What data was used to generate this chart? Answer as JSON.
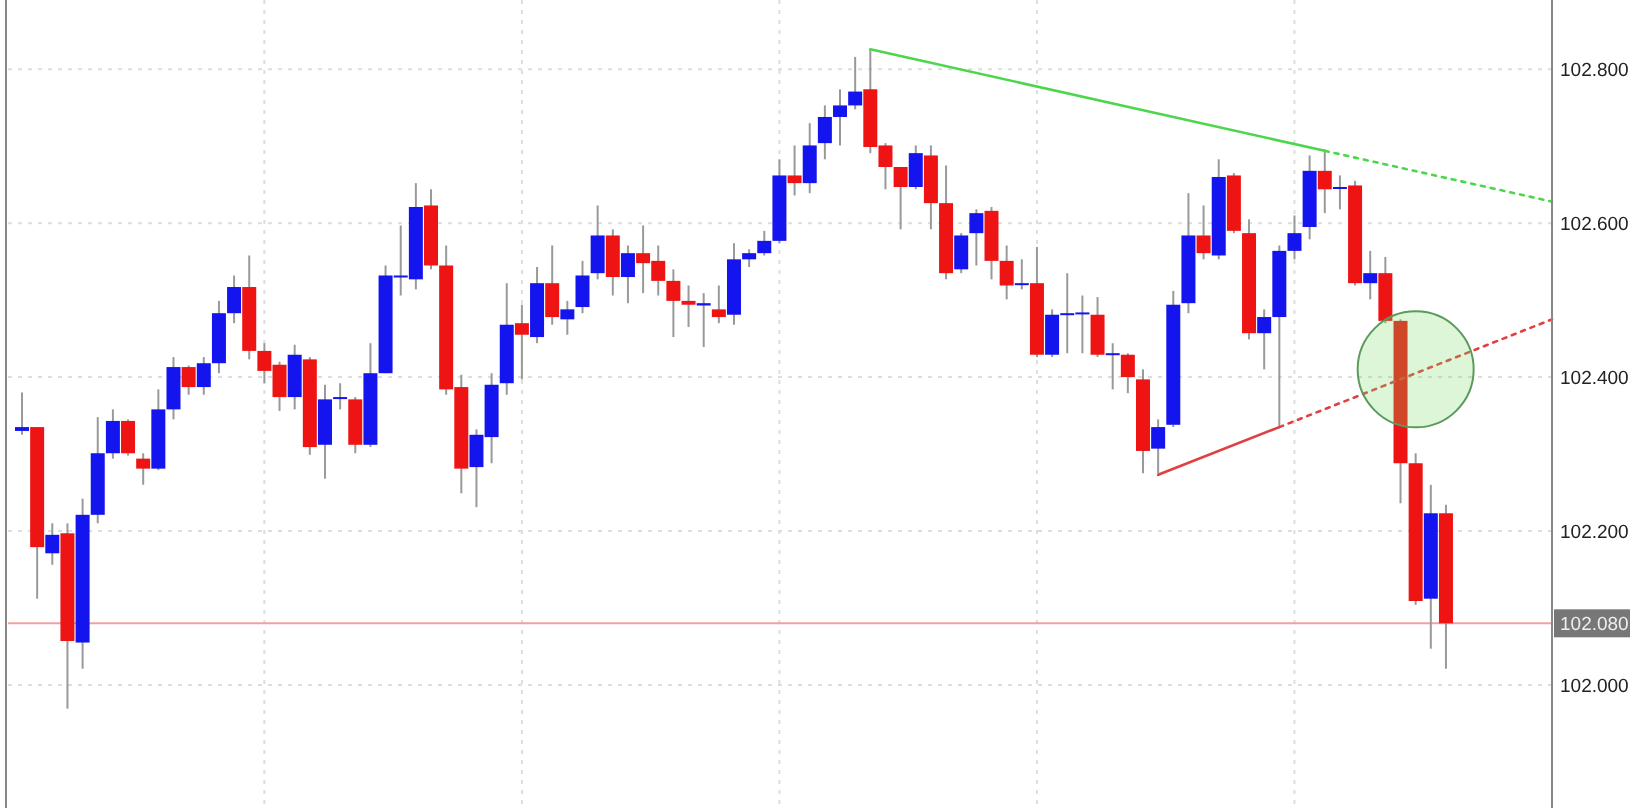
{
  "chart_data": {
    "type": "candlestick",
    "categories": [
      null,
      null,
      null,
      null,
      null,
      null,
      null,
      null,
      null,
      null,
      null,
      null,
      null,
      null,
      null,
      null,
      null,
      null,
      null,
      null,
      null,
      null,
      null,
      null,
      null,
      null,
      null,
      null,
      null,
      null,
      null,
      null,
      null,
      null,
      null,
      null,
      null,
      null,
      null,
      null,
      null,
      null,
      null,
      null,
      null,
      null,
      null,
      null,
      null,
      null,
      null,
      null,
      null,
      null,
      null,
      null,
      null,
      null,
      null,
      null,
      null,
      null,
      null,
      null,
      null,
      null,
      null,
      null,
      null,
      null,
      null,
      null,
      null,
      null,
      null,
      null,
      null,
      null,
      null,
      null,
      null,
      null,
      null,
      null,
      null,
      null,
      null,
      null,
      null,
      null,
      null,
      null,
      null,
      null,
      null,
      null,
      null,
      null,
      null,
      null,
      null,
      null
    ],
    "ohlc": [
      [
        102.33,
        102.38,
        102.325,
        102.335
      ],
      [
        102.335,
        102.335,
        102.112,
        102.179
      ],
      [
        102.171,
        102.21,
        102.156,
        102.195
      ],
      [
        102.197,
        102.21,
        101.969,
        102.057
      ],
      [
        102.055,
        102.242,
        102.021,
        102.221
      ],
      [
        102.221,
        102.348,
        102.21,
        102.301
      ],
      [
        102.301,
        102.358,
        102.294,
        102.343
      ],
      [
        102.343,
        102.345,
        102.298,
        102.301
      ],
      [
        102.294,
        102.301,
        102.26,
        102.281
      ],
      [
        102.281,
        102.384,
        102.279,
        102.358
      ],
      [
        102.358,
        102.426,
        102.345,
        102.413
      ],
      [
        102.413,
        102.415,
        102.377,
        102.387
      ],
      [
        102.387,
        102.426,
        102.377,
        102.418
      ],
      [
        102.418,
        102.499,
        102.405,
        102.483
      ],
      [
        102.483,
        102.532,
        102.47,
        102.517
      ],
      [
        102.517,
        102.558,
        102.423,
        102.434
      ],
      [
        102.434,
        102.444,
        102.392,
        102.408
      ],
      [
        102.416,
        102.42,
        102.356,
        102.374
      ],
      [
        102.374,
        102.442,
        102.358,
        102.429
      ],
      [
        102.423,
        102.426,
        102.299,
        102.309
      ],
      [
        102.312,
        102.39,
        102.268,
        102.371
      ],
      [
        102.372,
        102.392,
        102.358,
        102.374
      ],
      [
        102.371,
        102.374,
        102.301,
        102.312
      ],
      [
        102.312,
        102.444,
        102.309,
        102.405
      ],
      [
        102.405,
        102.545,
        102.405,
        102.532
      ],
      [
        102.53,
        102.597,
        102.506,
        102.532
      ],
      [
        102.527,
        102.652,
        102.514,
        102.621
      ],
      [
        102.623,
        102.644,
        102.54,
        102.545
      ],
      [
        102.545,
        102.571,
        102.377,
        102.384
      ],
      [
        102.387,
        102.403,
        102.249,
        102.281
      ],
      [
        102.283,
        102.332,
        102.231,
        102.325
      ],
      [
        102.322,
        102.405,
        102.288,
        102.39
      ],
      [
        102.392,
        102.522,
        102.377,
        102.468
      ],
      [
        102.47,
        102.494,
        102.397,
        102.455
      ],
      [
        102.452,
        102.543,
        102.444,
        102.522
      ],
      [
        102.522,
        102.571,
        102.468,
        102.478
      ],
      [
        102.475,
        102.499,
        102.455,
        102.488
      ],
      [
        102.491,
        102.551,
        102.483,
        102.532
      ],
      [
        102.535,
        102.623,
        102.527,
        102.584
      ],
      [
        102.584,
        102.592,
        102.506,
        102.53
      ],
      [
        102.53,
        102.571,
        102.496,
        102.561
      ],
      [
        102.561,
        102.597,
        102.509,
        102.548
      ],
      [
        102.551,
        102.571,
        102.506,
        102.525
      ],
      [
        102.525,
        102.54,
        102.452,
        102.499
      ],
      [
        102.499,
        102.519,
        102.465,
        102.494
      ],
      [
        102.493,
        102.509,
        102.439,
        102.496
      ],
      [
        102.488,
        102.519,
        102.47,
        102.478
      ],
      [
        102.481,
        102.574,
        102.468,
        102.553
      ],
      [
        102.553,
        102.566,
        102.543,
        102.561
      ],
      [
        102.561,
        102.59,
        102.558,
        102.577
      ],
      [
        102.577,
        102.683,
        102.574,
        102.662
      ],
      [
        102.662,
        102.701,
        102.636,
        102.652
      ],
      [
        102.652,
        102.73,
        102.639,
        102.701
      ],
      [
        102.704,
        102.753,
        102.683,
        102.738
      ],
      [
        102.738,
        102.774,
        102.701,
        102.753
      ],
      [
        102.753,
        102.816,
        102.748,
        102.771
      ],
      [
        102.774,
        102.826,
        102.691,
        102.699
      ],
      [
        102.701,
        102.704,
        102.644,
        102.673
      ],
      [
        102.673,
        102.673,
        102.592,
        102.647
      ],
      [
        102.647,
        102.701,
        102.644,
        102.691
      ],
      [
        102.688,
        102.701,
        102.592,
        102.626
      ],
      [
        102.626,
        102.675,
        102.527,
        102.535
      ],
      [
        102.54,
        102.587,
        102.535,
        102.584
      ],
      [
        102.587,
        102.618,
        102.545,
        102.613
      ],
      [
        102.616,
        102.621,
        102.527,
        102.551
      ],
      [
        102.551,
        102.571,
        102.501,
        102.519
      ],
      [
        102.52,
        102.553,
        102.514,
        102.522
      ],
      [
        102.522,
        102.569,
        102.426,
        102.429
      ],
      [
        102.429,
        102.488,
        102.426,
        102.481
      ],
      [
        102.481,
        102.535,
        102.431,
        102.483
      ],
      [
        102.483,
        102.506,
        102.431,
        102.484
      ],
      [
        102.481,
        102.504,
        102.426,
        102.429
      ],
      [
        102.429,
        102.444,
        102.384,
        102.431
      ],
      [
        102.429,
        102.431,
        102.379,
        102.4
      ],
      [
        102.397,
        102.41,
        102.275,
        102.304
      ],
      [
        102.307,
        102.345,
        102.275,
        102.335
      ],
      [
        102.338,
        102.512,
        102.335,
        102.494
      ],
      [
        102.496,
        102.639,
        102.483,
        102.584
      ],
      [
        102.584,
        102.623,
        102.553,
        102.561
      ],
      [
        102.558,
        102.683,
        102.553,
        102.66
      ],
      [
        102.662,
        102.665,
        102.587,
        102.59
      ],
      [
        102.587,
        102.605,
        102.449,
        102.457
      ],
      [
        102.457,
        102.488,
        102.41,
        102.478
      ],
      [
        102.478,
        102.571,
        102.335,
        102.564
      ],
      [
        102.564,
        102.61,
        102.553,
        102.587
      ],
      [
        102.595,
        102.688,
        102.579,
        102.668
      ],
      [
        102.668,
        102.694,
        102.613,
        102.644
      ],
      [
        102.645,
        102.662,
        102.618,
        102.647
      ],
      [
        102.649,
        102.655,
        102.519,
        102.522
      ],
      [
        102.522,
        102.564,
        102.501,
        102.535
      ],
      [
        102.535,
        102.556,
        102.47,
        102.473
      ],
      [
        102.473,
        102.475,
        102.236,
        102.288
      ],
      [
        102.288,
        102.301,
        102.104,
        102.109
      ],
      [
        102.112,
        102.26,
        102.047,
        102.223
      ],
      [
        102.223,
        102.234,
        102.021,
        102.08
      ],
      null,
      null,
      null,
      null,
      null,
      null,
      null
    ],
    "series": [
      {
        "type": "line",
        "color": "#4cd64c",
        "line_style": "solid",
        "values": [
          null,
          null,
          null,
          null,
          null,
          null,
          null,
          null,
          null,
          null,
          null,
          null,
          null,
          null,
          null,
          null,
          null,
          null,
          null,
          null,
          null,
          null,
          null,
          null,
          null,
          null,
          null,
          null,
          null,
          null,
          null,
          null,
          null,
          null,
          null,
          null,
          null,
          null,
          null,
          null,
          null,
          null,
          null,
          null,
          null,
          null,
          null,
          null,
          null,
          null,
          null,
          null,
          null,
          null,
          null,
          null,
          102.826,
          null,
          null,
          null,
          null,
          null,
          null,
          null,
          null,
          null,
          null,
          null,
          null,
          null,
          null,
          null,
          null,
          null,
          null,
          null,
          null,
          null,
          null,
          null,
          null,
          null,
          null,
          null,
          null,
          null,
          102.694,
          null,
          null,
          null,
          null,
          null,
          null,
          null,
          null,
          null,
          null,
          null,
          null,
          null,
          null,
          null
        ]
      },
      {
        "type": "line",
        "color": "#4cd64c",
        "line_style": "dotted",
        "values": [
          null,
          null,
          null,
          null,
          null,
          null,
          null,
          null,
          null,
          null,
          null,
          null,
          null,
          null,
          null,
          null,
          null,
          null,
          null,
          null,
          null,
          null,
          null,
          null,
          null,
          null,
          null,
          null,
          null,
          null,
          null,
          null,
          null,
          null,
          null,
          null,
          null,
          null,
          null,
          null,
          null,
          null,
          null,
          null,
          null,
          null,
          null,
          null,
          null,
          null,
          null,
          null,
          null,
          null,
          null,
          null,
          null,
          null,
          null,
          null,
          null,
          null,
          null,
          null,
          null,
          null,
          null,
          null,
          null,
          null,
          null,
          null,
          null,
          null,
          null,
          null,
          null,
          null,
          null,
          null,
          null,
          null,
          null,
          null,
          null,
          null,
          102.694,
          null,
          null,
          null,
          null,
          null,
          null,
          null,
          null,
          null,
          null,
          null,
          null,
          null,
          null,
          102.628
        ]
      },
      {
        "type": "line",
        "color": "#e04040",
        "line_style": "solid",
        "values": [
          null,
          null,
          null,
          null,
          null,
          null,
          null,
          null,
          null,
          null,
          null,
          null,
          null,
          null,
          null,
          null,
          null,
          null,
          null,
          null,
          null,
          null,
          null,
          null,
          null,
          null,
          null,
          null,
          null,
          null,
          null,
          null,
          null,
          null,
          null,
          null,
          null,
          null,
          null,
          null,
          null,
          null,
          null,
          null,
          null,
          null,
          null,
          null,
          null,
          null,
          null,
          null,
          null,
          null,
          null,
          null,
          null,
          null,
          null,
          null,
          null,
          null,
          null,
          null,
          null,
          null,
          null,
          null,
          null,
          null,
          null,
          null,
          null,
          null,
          null,
          102.273,
          null,
          null,
          null,
          null,
          null,
          null,
          null,
          102.335,
          null,
          null,
          null,
          null,
          null,
          null,
          null,
          null,
          null,
          null,
          null,
          null,
          null,
          null,
          null,
          null,
          null,
          null
        ]
      },
      {
        "type": "line",
        "color": "#e04040",
        "line_style": "dotted",
        "values": [
          null,
          null,
          null,
          null,
          null,
          null,
          null,
          null,
          null,
          null,
          null,
          null,
          null,
          null,
          null,
          null,
          null,
          null,
          null,
          null,
          null,
          null,
          null,
          null,
          null,
          null,
          null,
          null,
          null,
          null,
          null,
          null,
          null,
          null,
          null,
          null,
          null,
          null,
          null,
          null,
          null,
          null,
          null,
          null,
          null,
          null,
          null,
          null,
          null,
          null,
          null,
          null,
          null,
          null,
          null,
          null,
          null,
          null,
          null,
          null,
          null,
          null,
          null,
          null,
          null,
          null,
          null,
          null,
          null,
          null,
          null,
          null,
          null,
          null,
          null,
          null,
          null,
          null,
          null,
          null,
          null,
          null,
          null,
          102.335,
          null,
          null,
          null,
          null,
          null,
          null,
          null,
          null,
          null,
          null,
          null,
          null,
          null,
          null,
          null,
          null,
          null,
          102.475
        ]
      }
    ],
    "ylim": [
      101.84,
      102.89
    ],
    "yticks": [
      {
        "value": 102,
        "label": "102.000"
      },
      {
        "value": 102.2,
        "label": "102.200"
      },
      {
        "value": 102.4,
        "label": "102.400"
      },
      {
        "value": 102.6,
        "label": "102.600"
      },
      {
        "value": 102.8,
        "label": "102.800"
      }
    ],
    "grid": true,
    "ref_lines": [
      {
        "axis": "y",
        "value": 102.08,
        "label": "102.080",
        "color": "#f0a0a0"
      }
    ]
  }
}
